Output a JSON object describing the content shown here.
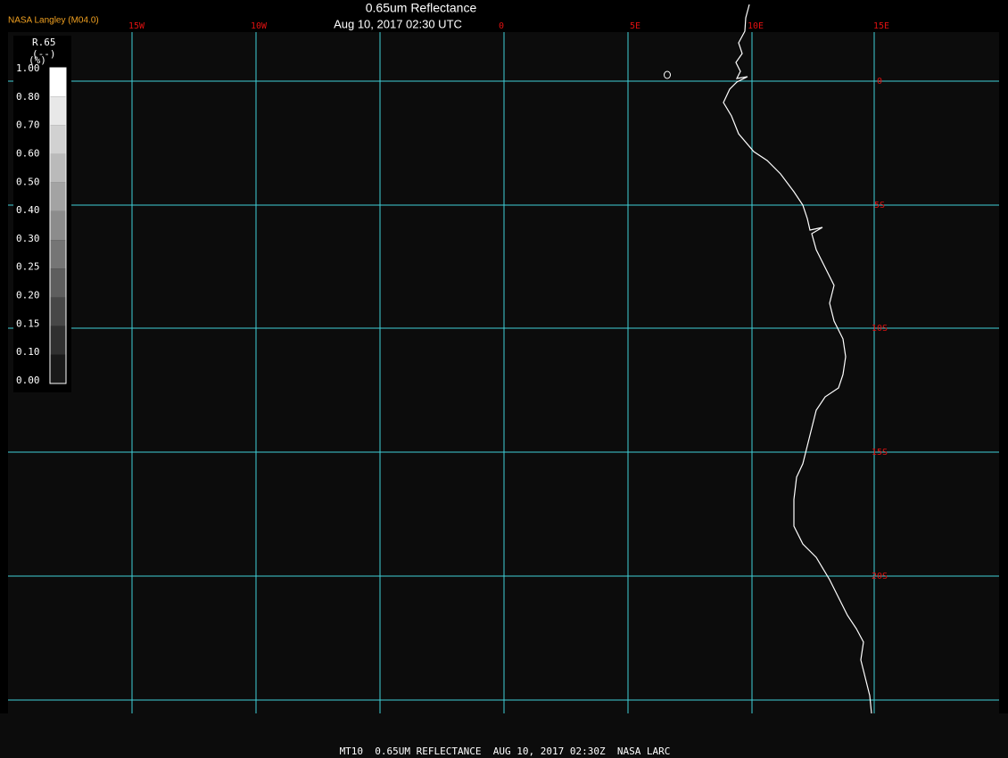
{
  "header": {
    "source": "NASA Langley (M04.0)",
    "title": "0.65um Reflectance",
    "datetime": "Aug 10, 2017 02:30 UTC"
  },
  "map": {
    "longitude_labels": [
      "15W",
      "10W",
      "0",
      "5E",
      "10E",
      "15E"
    ],
    "latitude_labels": [
      "0",
      "5S",
      "10S",
      "15S",
      "20S"
    ]
  },
  "colorbar": {
    "name": "R.65",
    "unit": "(--)",
    "unit2": "(%)",
    "labels": [
      "1.00",
      "0.80",
      "0.70",
      "0.60",
      "0.50",
      "0.40",
      "0.30",
      "0.25",
      "0.20",
      "0.15",
      "0.10",
      "0.00"
    ]
  },
  "footer": "MT10  0.65UM REFLECTANCE  AUG 10, 2017 02:30Z  NASA LARC"
}
